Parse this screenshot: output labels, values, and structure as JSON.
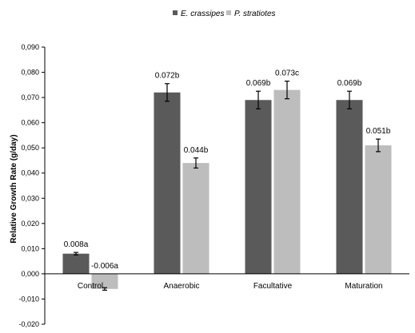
{
  "chart_data": {
    "type": "bar",
    "title": "",
    "xlabel": "",
    "ylabel": "Relative Growth Rate  (g/day)",
    "ylim": [
      -0.02,
      0.09
    ],
    "ytick_step": 0.01,
    "ytick_labels": [
      "-0,020",
      "-0,010",
      "0,000",
      "0,010",
      "0,020",
      "0,030",
      "0,040",
      "0,050",
      "0,060",
      "0,070",
      "0,080",
      "0,090"
    ],
    "categories": [
      "Control",
      "Anaerobic",
      "Facultative",
      "Maturation"
    ],
    "legend_placement": "top-center",
    "grid": false,
    "series": [
      {
        "name": "E. crassipes",
        "color": "#5a5a5a",
        "values": [
          0.008,
          0.072,
          0.069,
          0.069
        ],
        "errors": [
          0.0005,
          0.0035,
          0.0035,
          0.0035
        ],
        "labels": [
          "0.008a",
          "0.072b",
          "0.069b",
          "0.069b"
        ]
      },
      {
        "name": "P. stratiotes",
        "color": "#bdbdbd",
        "values": [
          -0.006,
          0.044,
          0.073,
          0.051
        ],
        "errors": [
          0.0005,
          0.002,
          0.0035,
          0.0025
        ],
        "labels": [
          "-0.006a",
          "0.044b",
          "0.073c",
          "0.051b"
        ]
      }
    ]
  }
}
